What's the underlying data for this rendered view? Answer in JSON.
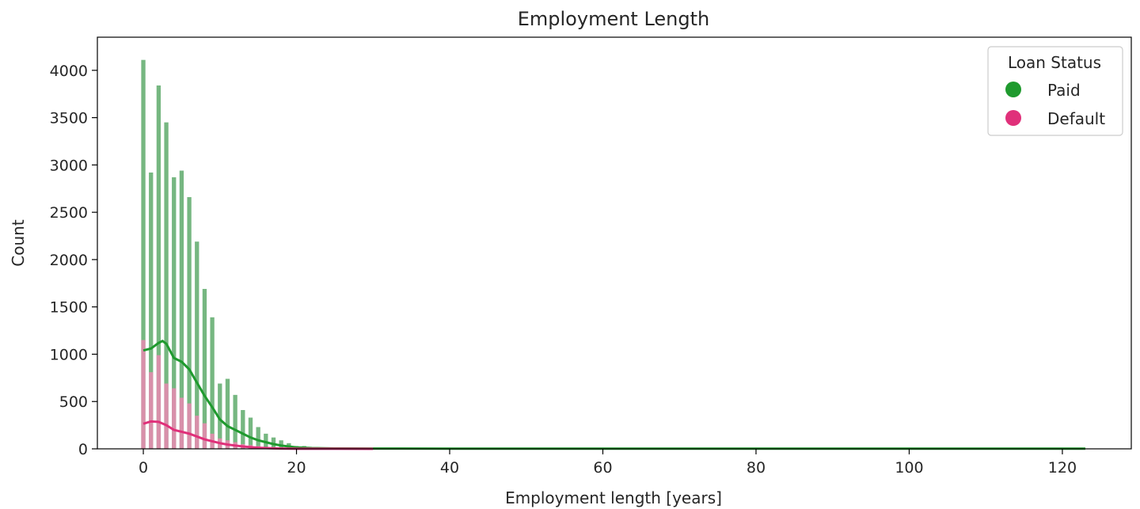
{
  "chart_data": {
    "type": "histogram",
    "title": "Employment Length",
    "xlabel": "Employment length [years]",
    "ylabel": "Count",
    "xlim": [
      -6,
      129
    ],
    "ylim": [
      0,
      4350
    ],
    "x_ticks": [
      0,
      20,
      40,
      60,
      80,
      100,
      120
    ],
    "y_ticks": [
      0,
      500,
      1000,
      1500,
      2000,
      2500,
      3000,
      3500,
      4000
    ],
    "grid": false,
    "legend": {
      "title": "Loan Status",
      "placement": "top-right",
      "entries": [
        {
          "label": "Paid",
          "color": "#1f9a2e"
        },
        {
          "label": "Default",
          "color": "#e0307a"
        }
      ]
    },
    "bin_width": 1,
    "bins_x": [
      0,
      1,
      2,
      3,
      4,
      5,
      6,
      7,
      8,
      9,
      10,
      11,
      12,
      13,
      14,
      15,
      16,
      17,
      18,
      19,
      20,
      21,
      22,
      23,
      24
    ],
    "series": [
      {
        "name": "Paid",
        "bar_color": "#6fb37a",
        "line_color": "#1f9a2e",
        "values": [
          4110,
          2920,
          3840,
          3450,
          2870,
          2940,
          2660,
          2190,
          1690,
          1390,
          690,
          740,
          570,
          410,
          330,
          230,
          160,
          120,
          90,
          60,
          30,
          30,
          10,
          10,
          5
        ],
        "kde_x": [
          0,
          1,
          2,
          2.5,
          3,
          4,
          5,
          6,
          7,
          8,
          9,
          10,
          11,
          12,
          13,
          14,
          15,
          16,
          17,
          18,
          19,
          20,
          22,
          25,
          30,
          40,
          60,
          80,
          100,
          123
        ],
        "kde_y": [
          1040,
          1060,
          1120,
          1140,
          1110,
          960,
          920,
          840,
          700,
          560,
          440,
          310,
          240,
          200,
          160,
          120,
          90,
          70,
          50,
          35,
          25,
          15,
          8,
          4,
          3,
          2,
          2,
          2,
          2,
          2
        ]
      },
      {
        "name": "Default",
        "bar_color": "#ea89b2",
        "line_color": "#e0307a",
        "values": [
          1150,
          810,
          990,
          690,
          640,
          540,
          480,
          350,
          270,
          160,
          110,
          90,
          70,
          50,
          40,
          30,
          20,
          15,
          10,
          5,
          5,
          3,
          2,
          1,
          1
        ],
        "kde_x": [
          0,
          1,
          2,
          3,
          4,
          5,
          6,
          7,
          8,
          9,
          10,
          11,
          12,
          13,
          14,
          15,
          16,
          17,
          18,
          19,
          20,
          22,
          25,
          30
        ],
        "kde_y": [
          265,
          290,
          285,
          250,
          200,
          180,
          160,
          130,
          100,
          80,
          60,
          45,
          35,
          25,
          18,
          12,
          8,
          5,
          3,
          2,
          1,
          1,
          1,
          0
        ]
      }
    ]
  }
}
